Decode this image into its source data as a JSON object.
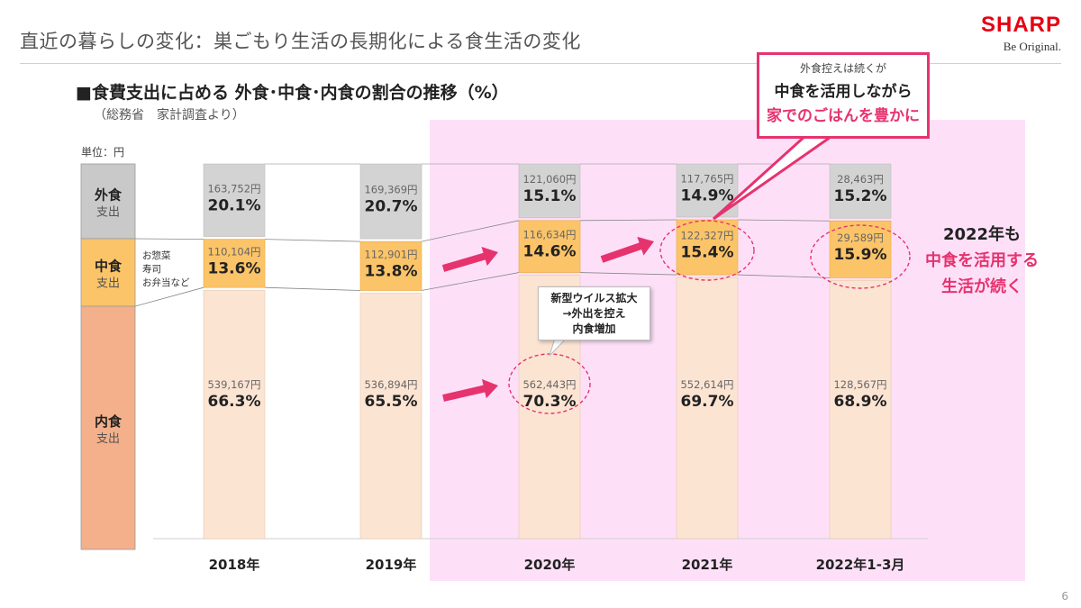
{
  "header": {
    "title": "直近の暮らしの変化：巣ごもり生活の長期化による食生活の変化",
    "logo_brand": "SHARP",
    "logo_tagline": "Be Original."
  },
  "chart_heading": "■食費支出に占める 外食･中食･内食の割合の推移（%）",
  "chart_source": "（総務省　家計調査より）",
  "unit_label": "単位：円",
  "legend": [
    {
      "name": "外食",
      "sub": "支出",
      "color": "#c9c9c9"
    },
    {
      "name": "中食",
      "sub": "支出",
      "color": "#fbc468"
    },
    {
      "name": "内食",
      "sub": "支出",
      "color": "#f3b08a"
    }
  ],
  "nakashoku_note": [
    "お惣菜",
    "寿司",
    "お弁当など"
  ],
  "callout": {
    "line1": "外食控えは続くが",
    "line2": "中食を活用しながら",
    "line3": "家でのごはんを豊かに"
  },
  "covid_note": [
    "新型ウイルス拡大",
    "→外出を控え",
    "内食増加"
  ],
  "note_2022": [
    "2022年も",
    "中食を活用する",
    "生活が続く"
  ],
  "page_number": "6",
  "colors": {
    "gaishoku": "#d3d3d3",
    "nakashoku": "#fbc468",
    "uchishoku": "#fce4d3",
    "highlight_bg": "#fde0f8",
    "accent": "#e6336e"
  },
  "chart_data": {
    "type": "bar",
    "stacked": true,
    "normalized": true,
    "title": "食費支出に占める 外食･中食･内食の割合の推移（%）",
    "categories": [
      "2018年",
      "2019年",
      "2020年",
      "2021年",
      "2022年1-3月"
    ],
    "series": [
      {
        "name": "外食",
        "percent": [
          20.1,
          20.7,
          15.1,
          14.9,
          15.2
        ],
        "yen": [
          "163,752円",
          "169,369円",
          "121,060円",
          "117,765円",
          "28,463円"
        ],
        "percent_labels": [
          "20.1%",
          "20.7%",
          "15.1%",
          "14.9%",
          "15.2%"
        ]
      },
      {
        "name": "中食",
        "percent": [
          13.6,
          13.8,
          14.6,
          15.4,
          15.9
        ],
        "yen": [
          "110,104円",
          "112,901円",
          "116,634円",
          "122,327円",
          "29,589円"
        ],
        "percent_labels": [
          "13.6%",
          "13.8%",
          "14.6%",
          "15.4%",
          "15.9%"
        ]
      },
      {
        "name": "内食",
        "percent": [
          66.3,
          65.5,
          70.3,
          69.7,
          68.9
        ],
        "yen": [
          "539,167円",
          "536,894円",
          "562,443円",
          "552,614円",
          "128,567円"
        ],
        "percent_labels": [
          "66.3%",
          "65.5%",
          "70.3%",
          "69.7%",
          "68.9%"
        ]
      }
    ],
    "highlighted_categories": [
      "2020年",
      "2021年",
      "2022年1-3月"
    ]
  }
}
